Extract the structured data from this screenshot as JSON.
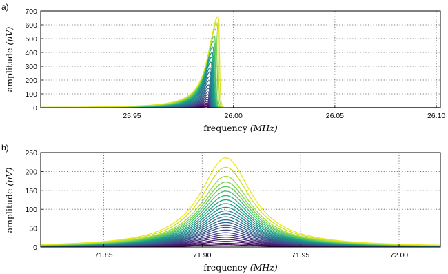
{
  "chart_data": [
    {
      "type": "line",
      "panel_label": "a)",
      "xlabel": "frequency",
      "xlabel_unit": "(MHz)",
      "ylabel": "amplitude",
      "ylabel_unit": "(μV)",
      "xlim": [
        25.905,
        26.102
      ],
      "ylim": [
        0,
        700
      ],
      "xticks": [
        25.95,
        26.0,
        26.05,
        26.1
      ],
      "xtick_labels": [
        "25.95",
        "26.00",
        "26.05",
        "26.10"
      ],
      "yticks": [
        0,
        100,
        200,
        300,
        400,
        500,
        600,
        700
      ],
      "ytick_labels": [
        "0",
        "100",
        "200",
        "300",
        "400",
        "500",
        "600",
        "700"
      ],
      "grid": true,
      "colormap": [
        "#440154",
        "#3b528b",
        "#21918c",
        "#5ec962",
        "#fde725"
      ],
      "series_description": "family of asymmetric resonance curves (Duffing-like), peak shifts up in frequency as amplitude grows",
      "series": [
        {
          "peak_x": 25.9868,
          "peak_y": 8,
          "hwhm": 0.0028,
          "color": "#440154"
        },
        {
          "peak_x": 25.9868,
          "peak_y": 15,
          "hwhm": 0.0028,
          "color": "#46085c"
        },
        {
          "peak_x": 25.9869,
          "peak_y": 24,
          "hwhm": 0.0028,
          "color": "#471365"
        },
        {
          "peak_x": 25.987,
          "peak_y": 34,
          "hwhm": 0.0028,
          "color": "#481d6f"
        },
        {
          "peak_x": 25.9871,
          "peak_y": 46,
          "hwhm": 0.0028,
          "color": "#472878"
        },
        {
          "peak_x": 25.9872,
          "peak_y": 60,
          "hwhm": 0.0028,
          "color": "#46337e"
        },
        {
          "peak_x": 25.9873,
          "peak_y": 76,
          "hwhm": 0.0028,
          "color": "#433e85"
        },
        {
          "peak_x": 25.9874,
          "peak_y": 95,
          "hwhm": 0.0028,
          "color": "#3f4788"
        },
        {
          "peak_x": 25.9875,
          "peak_y": 115,
          "hwhm": 0.0028,
          "color": "#3b518b"
        },
        {
          "peak_x": 25.9877,
          "peak_y": 140,
          "hwhm": 0.0028,
          "color": "#375a8c"
        },
        {
          "peak_x": 25.9878,
          "peak_y": 165,
          "hwhm": 0.0028,
          "color": "#32638d"
        },
        {
          "peak_x": 25.988,
          "peak_y": 195,
          "hwhm": 0.0028,
          "color": "#2e6b8e"
        },
        {
          "peak_x": 25.9882,
          "peak_y": 225,
          "hwhm": 0.0028,
          "color": "#2a748e"
        },
        {
          "peak_x": 25.9884,
          "peak_y": 260,
          "hwhm": 0.0028,
          "color": "#277c8e"
        },
        {
          "peak_x": 25.9886,
          "peak_y": 290,
          "hwhm": 0.0028,
          "color": "#23848e"
        },
        {
          "peak_x": 25.9889,
          "peak_y": 330,
          "hwhm": 0.0028,
          "color": "#208d8c"
        },
        {
          "peak_x": 25.9892,
          "peak_y": 365,
          "hwhm": 0.0028,
          "color": "#1f958b"
        },
        {
          "peak_x": 25.9895,
          "peak_y": 400,
          "hwhm": 0.0028,
          "color": "#22a187"
        },
        {
          "peak_x": 25.9898,
          "peak_y": 440,
          "hwhm": 0.0028,
          "color": "#2eb37c"
        },
        {
          "peak_x": 25.9902,
          "peak_y": 480,
          "hwhm": 0.0028,
          "color": "#42be71"
        },
        {
          "peak_x": 25.9906,
          "peak_y": 520,
          "hwhm": 0.0028,
          "color": "#5ec962"
        },
        {
          "peak_x": 25.9912,
          "peak_y": 570,
          "hwhm": 0.0028,
          "color": "#89d548"
        },
        {
          "peak_x": 25.9918,
          "peak_y": 615,
          "hwhm": 0.0028,
          "color": "#b5de2b"
        },
        {
          "peak_x": 25.9924,
          "peak_y": 660,
          "hwhm": 0.0028,
          "color": "#dde318"
        }
      ]
    },
    {
      "type": "line",
      "panel_label": "b)",
      "xlabel": "frequency",
      "xlabel_unit": "(MHz)",
      "ylabel": "amplitude",
      "ylabel_unit": "(μV)",
      "xlim": [
        71.818,
        72.021
      ],
      "ylim": [
        0,
        250
      ],
      "xticks": [
        71.85,
        71.9,
        71.95,
        72.0
      ],
      "xtick_labels": [
        "71.85",
        "71.90",
        "71.95",
        "72.00"
      ],
      "yticks": [
        0,
        50,
        100,
        150,
        200,
        250
      ],
      "ytick_labels": [
        "0",
        "50",
        "100",
        "150",
        "200",
        "250"
      ],
      "grid": true,
      "colormap": [
        "#440154",
        "#3b528b",
        "#21918c",
        "#5ec962",
        "#fde725"
      ],
      "series_description": "family of symmetric Lorentzian resonance curves centred near 71.912 MHz",
      "series": [
        {
          "peak_x": 71.912,
          "peak_y": 6,
          "hwhm": 0.016,
          "color": "#440154"
        },
        {
          "peak_x": 71.912,
          "peak_y": 10,
          "hwhm": 0.016,
          "color": "#460a5d"
        },
        {
          "peak_x": 71.912,
          "peak_y": 15,
          "hwhm": 0.016,
          "color": "#471365"
        },
        {
          "peak_x": 71.912,
          "peak_y": 20,
          "hwhm": 0.016,
          "color": "#481d6f"
        },
        {
          "peak_x": 71.912,
          "peak_y": 26,
          "hwhm": 0.016,
          "color": "#472878"
        },
        {
          "peak_x": 71.912,
          "peak_y": 32,
          "hwhm": 0.016,
          "color": "#46337e"
        },
        {
          "peak_x": 71.912,
          "peak_y": 38,
          "hwhm": 0.016,
          "color": "#433e85"
        },
        {
          "peak_x": 71.912,
          "peak_y": 45,
          "hwhm": 0.016,
          "color": "#3f4788"
        },
        {
          "peak_x": 71.912,
          "peak_y": 52,
          "hwhm": 0.016,
          "color": "#3b518b"
        },
        {
          "peak_x": 71.912,
          "peak_y": 58,
          "hwhm": 0.016,
          "color": "#375a8c"
        },
        {
          "peak_x": 71.912,
          "peak_y": 65,
          "hwhm": 0.016,
          "color": "#32638d"
        },
        {
          "peak_x": 71.912,
          "peak_y": 72,
          "hwhm": 0.016,
          "color": "#2e6b8e"
        },
        {
          "peak_x": 71.912,
          "peak_y": 80,
          "hwhm": 0.016,
          "color": "#2a748e"
        },
        {
          "peak_x": 71.912,
          "peak_y": 88,
          "hwhm": 0.016,
          "color": "#277c8e"
        },
        {
          "peak_x": 71.912,
          "peak_y": 96,
          "hwhm": 0.016,
          "color": "#23848e"
        },
        {
          "peak_x": 71.912,
          "peak_y": 105,
          "hwhm": 0.016,
          "color": "#208d8c"
        },
        {
          "peak_x": 71.912,
          "peak_y": 115,
          "hwhm": 0.016,
          "color": "#1f958b"
        },
        {
          "peak_x": 71.912,
          "peak_y": 125,
          "hwhm": 0.016,
          "color": "#22a187"
        },
        {
          "peak_x": 71.912,
          "peak_y": 136,
          "hwhm": 0.016,
          "color": "#2eb37c"
        },
        {
          "peak_x": 71.912,
          "peak_y": 148,
          "hwhm": 0.016,
          "color": "#42be71"
        },
        {
          "peak_x": 71.912,
          "peak_y": 160,
          "hwhm": 0.016,
          "color": "#5ec962"
        },
        {
          "peak_x": 71.912,
          "peak_y": 172,
          "hwhm": 0.016,
          "color": "#7ad151"
        },
        {
          "peak_x": 71.912,
          "peak_y": 187,
          "hwhm": 0.016,
          "color": "#a0da39"
        },
        {
          "peak_x": 71.912,
          "peak_y": 211,
          "hwhm": 0.016,
          "color": "#c8e020"
        },
        {
          "peak_x": 71.912,
          "peak_y": 236,
          "hwhm": 0.016,
          "color": "#eee51c"
        }
      ]
    }
  ]
}
